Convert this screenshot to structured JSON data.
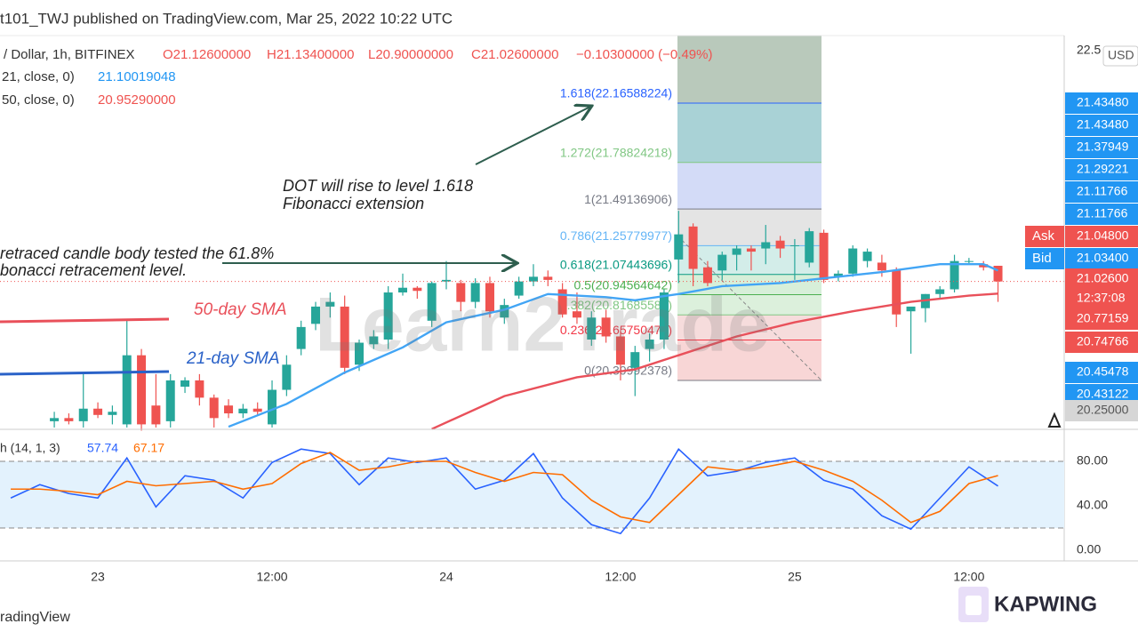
{
  "header": "t101_TWJ published on TradingView.com, Mar 25, 2022 10:22 UTC",
  "legend": {
    "symbol": "/ Dollar, 1h, BITFINEX",
    "open": "O21.12600000",
    "high": "H21.13400000",
    "low": "L20.90000000",
    "close": "C21.02600000",
    "change": "−0.10300000 (−0.49%)",
    "sma21": "21, close, 0)",
    "sma21_value": "21.10019048",
    "sma50": "50, close, 0)",
    "sma50_value": "20.95290000"
  },
  "annotations": {
    "dot1": "DOT will rise to level 1.618",
    "dot2": "Fibonacci extension",
    "ret1": "retraced candle body tested the 61.8%",
    "ret2": "bonacci retracement level.",
    "sma50": "50-day SMA",
    "sma21": "21-day SMA"
  },
  "watermark": "Learn2Trade",
  "currency": "USD",
  "price_tags": [
    {
      "label": "21.43480",
      "color": "#2196f3"
    },
    {
      "label": "21.43480",
      "color": "#2196f3"
    },
    {
      "label": "21.37949",
      "color": "#2196f3"
    },
    {
      "label": "21.29221",
      "color": "#2196f3"
    },
    {
      "label": "21.11766",
      "color": "#2196f3"
    },
    {
      "label": "21.11766",
      "color": "#2196f3"
    },
    {
      "tag": "Ask",
      "label": "21.04800",
      "color": "#ef5350"
    },
    {
      "tag": "Bid",
      "label": "21.03400",
      "color": "#2196f3"
    },
    {
      "label": "21.02600",
      "time": "12:37:08",
      "color": "#ef5350"
    },
    {
      "label": "20.77159",
      "color": "#ef5350"
    },
    {
      "label": "20.74766",
      "color": "#ef5350"
    },
    {
      "label": "20.45478",
      "color": "#2196f3"
    },
    {
      "label": "20.43122",
      "color": "#2196f3"
    },
    {
      "label": "20.25000",
      "color": "#d6d6d6"
    }
  ],
  "fibonacci": [
    {
      "label": "1.618(22.16588224)",
      "price": 22.16588224,
      "color": "#2962ff",
      "fill": "#a9d2d6"
    },
    {
      "label": "1.272(21.78824218)",
      "price": 21.78824218,
      "color": "#81c784",
      "fill": "#d3dbf7"
    },
    {
      "label": "1(21.49136906)",
      "price": 21.49136906,
      "color": "#787b86",
      "fill": "#e4e4e4"
    },
    {
      "label": "0.786(21.25779977)",
      "price": 21.25779977,
      "color": "#64b5f6",
      "fill": "#d3ede9"
    },
    {
      "label": "0.618(21.07443696)",
      "price": 21.07443696,
      "color": "#089981",
      "fill": "#d7efd9"
    },
    {
      "label": "0.5(20.94564642)",
      "price": 20.94564642,
      "color": "#4caf50",
      "fill": "#dcf0dc"
    },
    {
      "label": "0.382(20.81685588)",
      "price": 20.81685588,
      "color": "#81c784",
      "fill": "#f6dcdc"
    },
    {
      "label": "0.236(20.65750476)",
      "price": 20.65750476,
      "color": "#f23645",
      "fill": "#f8d6d6"
    },
    {
      "label": "0(20.39992378)",
      "price": 20.39992378,
      "color": "#787b86"
    }
  ],
  "footer": {
    "brand": "radingView",
    "logo": "KAPWING"
  },
  "chart_data": [
    {
      "type": "candlestick",
      "up_color": "#26a69a",
      "down_color": "#ef5350",
      "x": [
        -3,
        -2,
        -1,
        0,
        1,
        2,
        3,
        4,
        5,
        6,
        7,
        8,
        9,
        10,
        11,
        12,
        13,
        14,
        15,
        16,
        17,
        18,
        19,
        20,
        21,
        22,
        23,
        24,
        25,
        26,
        27,
        28,
        29,
        30,
        31,
        32,
        33,
        34,
        35,
        36,
        37,
        38,
        39,
        40,
        41,
        42,
        43,
        44,
        45,
        46,
        47,
        48,
        49,
        50,
        51,
        52,
        53,
        54,
        55,
        56,
        57,
        58,
        59,
        60,
        61,
        62
      ],
      "open": [
        20.14,
        20.16,
        20.14,
        20.22,
        20.18,
        20.12,
        20.56,
        20.24,
        20.14,
        20.36,
        20.4,
        20.29,
        20.24,
        20.19,
        20.22,
        20.12,
        20.34,
        20.6,
        20.76,
        20.87,
        20.87,
        20.5,
        20.63,
        20.66,
        20.96,
        20.99,
        20.78,
        21.03,
        21.02,
        20.9,
        21.02,
        20.8,
        20.94,
        21.03,
        21.06,
        20.98,
        20.84,
        20.66,
        20.8,
        20.68,
        20.48,
        20.6,
        20.66,
        21.17,
        21.38,
        21.12,
        21.1,
        21.2,
        21.24,
        21.24,
        21.29,
        21.26,
        21.15,
        21.34,
        21.06,
        21.08,
        21.16,
        21.15,
        21.1,
        20.84,
        20.86,
        20.95,
        20.98,
        21.16,
        21.14,
        21.13
      ],
      "high": [
        20.2,
        20.19,
        20.45,
        20.26,
        20.24,
        20.78,
        20.6,
        20.44,
        20.44,
        20.42,
        20.44,
        20.31,
        20.28,
        20.25,
        20.26,
        20.4,
        20.56,
        20.78,
        20.9,
        20.96,
        20.94,
        20.66,
        20.72,
        21.0,
        21.08,
        21.0,
        21.03,
        21.16,
        21.04,
        21.05,
        21.06,
        20.92,
        21.06,
        21.14,
        21.1,
        21.02,
        20.96,
        20.84,
        20.85,
        20.72,
        20.62,
        20.7,
        20.98,
        21.48,
        21.4,
        21.16,
        21.22,
        21.26,
        21.26,
        21.39,
        21.32,
        21.3,
        21.37,
        21.36,
        21.1,
        21.26,
        21.24,
        21.2,
        21.12,
        20.86,
        20.95,
        21.0,
        21.2,
        21.18,
        21.16,
        21.13
      ],
      "low": [
        20.1,
        20.12,
        20.1,
        20.16,
        20.12,
        20.1,
        20.08,
        20.1,
        20.1,
        20.32,
        20.24,
        20.1,
        20.16,
        20.16,
        20.18,
        20.1,
        20.3,
        20.56,
        20.72,
        20.8,
        20.44,
        20.46,
        20.6,
        20.6,
        20.94,
        20.92,
        20.74,
        20.98,
        20.84,
        20.86,
        20.8,
        20.76,
        20.92,
        21.0,
        21.0,
        20.8,
        20.76,
        20.62,
        20.64,
        20.4,
        20.3,
        20.52,
        20.6,
        21.02,
        21.0,
        21.0,
        21.04,
        21.1,
        21.1,
        21.14,
        21.18,
        21.04,
        21.12,
        21.02,
        21.03,
        21.06,
        21.12,
        21.06,
        20.74,
        20.57,
        20.77,
        20.92,
        20.96,
        21.14,
        21.1,
        20.9
      ],
      "close": [
        20.16,
        20.14,
        20.22,
        20.18,
        20.2,
        20.56,
        20.12,
        20.12,
        20.4,
        20.4,
        20.29,
        20.16,
        20.19,
        20.22,
        20.2,
        20.34,
        20.5,
        20.74,
        20.87,
        20.9,
        20.48,
        20.64,
        20.68,
        20.96,
        20.99,
        20.97,
        21.02,
        21.04,
        20.9,
        21.02,
        20.84,
        20.88,
        21.03,
        21.06,
        21.04,
        20.82,
        20.8,
        20.8,
        20.68,
        20.5,
        20.58,
        20.66,
        20.96,
        21.33,
        21.11,
        21.02,
        21.2,
        21.24,
        21.22,
        21.28,
        21.24,
        21.26,
        21.35,
        21.04,
        21.08,
        21.24,
        21.22,
        21.1,
        20.82,
        20.87,
        20.95,
        20.98,
        21.16,
        21.16,
        21.12,
        21.03
      ],
      "series": [
        {
          "name": "SMA 21",
          "color": "#42a5f5",
          "x": [
            9,
            13,
            17,
            21,
            24,
            28,
            31,
            35,
            37,
            40,
            43,
            47,
            51,
            54,
            58,
            61,
            62
          ],
          "values": [
            20.105,
            20.25,
            20.45,
            20.61,
            20.77,
            20.85,
            20.95,
            20.93,
            20.91,
            20.95,
            21.0,
            21.02,
            21.06,
            21.09,
            21.14,
            21.14,
            21.10019048
          ]
        },
        {
          "name": "SMA 50",
          "color": "#e9505a",
          "x": [
            23,
            28,
            33,
            37,
            40,
            44,
            48,
            52,
            56,
            60,
            62
          ],
          "values": [
            20.09,
            20.3,
            20.42,
            20.47,
            20.56,
            20.68,
            20.77,
            20.84,
            20.9,
            20.94,
            20.9529
          ]
        }
      ],
      "xlim": [
        -6.74,
        66.56
      ],
      "ylim": [
        20.094,
        22.596
      ],
      "yticks": [
        22.5
      ],
      "xticks": [
        {
          "value": 0,
          "label": "23"
        },
        {
          "value": 12,
          "label": "12:00"
        },
        {
          "value": 24,
          "label": "24"
        },
        {
          "value": 36,
          "label": "12:00"
        },
        {
          "value": 48,
          "label": "25"
        },
        {
          "value": 60,
          "label": "12:00"
        }
      ]
    },
    {
      "type": "line",
      "title": "h (14, 1, 3)",
      "x": [
        -6,
        -4,
        -2,
        0,
        2,
        4,
        6,
        8,
        10,
        12,
        14,
        16,
        18,
        20,
        22,
        24,
        26,
        28,
        30,
        32,
        34,
        36,
        38,
        40,
        42,
        44,
        46,
        48,
        50,
        52,
        54,
        56,
        58,
        60,
        62
      ],
      "series": [
        {
          "name": "%K",
          "color": "#2962ff",
          "values": [
            47,
            59,
            51,
            47,
            83,
            39,
            67,
            63,
            47,
            79,
            91,
            87,
            59,
            83,
            79,
            83,
            55,
            63,
            87,
            47,
            23,
            15,
            47,
            91,
            67,
            71,
            79,
            83,
            63,
            55,
            31,
            19,
            47,
            75,
            57.74
          ]
        },
        {
          "name": "%D",
          "color": "#ff6d00",
          "values": [
            55,
            55,
            53,
            50,
            62,
            58,
            60,
            62,
            55,
            60,
            78,
            88,
            72,
            75,
            80,
            80,
            70,
            62,
            70,
            68,
            45,
            30,
            25,
            50,
            75,
            72,
            75,
            80,
            72,
            62,
            45,
            25,
            35,
            60,
            67.17
          ]
        }
      ],
      "bands": [
        20,
        80
      ],
      "band_color": "#e3f2fd",
      "xlim": [
        -6.74,
        66.56
      ],
      "ylim": [
        -8.8,
        107.2
      ],
      "yticks": [
        {
          "value": 80,
          "label": "80.00"
        },
        {
          "value": 40,
          "label": "40.00"
        },
        {
          "value": 0,
          "label": "0.00"
        }
      ]
    }
  ]
}
